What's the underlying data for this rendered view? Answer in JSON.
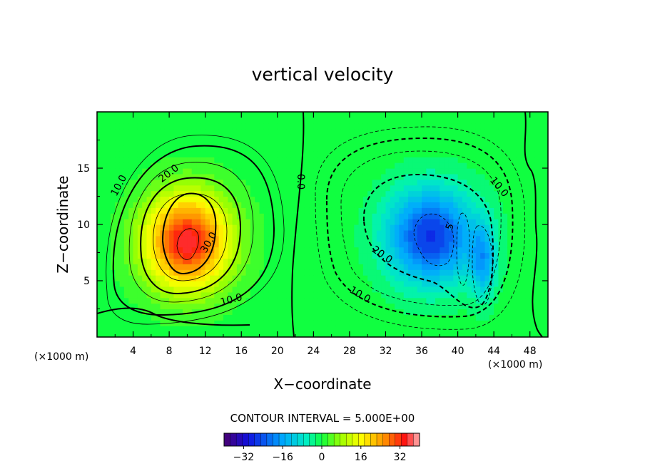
{
  "chart_data": {
    "type": "heatmap",
    "title": "vertical velocity",
    "xlabel": "X−coordinate",
    "ylabel": "Z−coordinate",
    "x_unit_left": "(×1000 m)",
    "x_unit_right": "(×1000 m)",
    "xlim": [
      0,
      50
    ],
    "ylim": [
      0,
      20
    ],
    "x_ticks": [
      4,
      8,
      12,
      16,
      20,
      24,
      28,
      32,
      36,
      40,
      44,
      48
    ],
    "x_tick_labels": [
      "4",
      "8",
      "12",
      "16",
      "20",
      "24",
      "28",
      "32",
      "36",
      "40",
      "44",
      "48"
    ],
    "y_ticks": [
      5,
      10,
      15
    ],
    "y_tick_labels": [
      "5",
      "10",
      "15"
    ],
    "contour_interval_text": "CONTOUR INTERVAL = 5.000E+00",
    "contour_labels": [
      "10.0",
      "20.0",
      "30.0",
      "10.0",
      "0.0",
      "10.0",
      "20.0",
      "10.0",
      "5"
    ],
    "colorbar": {
      "range": [
        -40,
        40
      ],
      "ticks": [
        -32,
        -16,
        0,
        16,
        32
      ],
      "tick_labels": [
        "−32",
        "−16",
        "0",
        "16",
        "32"
      ]
    },
    "updraft": {
      "center_x": 10,
      "center_z": 8.5,
      "peak": 35
    },
    "downdraft": {
      "center_x": 37,
      "center_z": 9,
      "peak": -27
    },
    "colormap": [
      "#4a0070",
      "#0a28ff",
      "#00c8ff",
      "#00ff90",
      "#44ff00",
      "#ffff00",
      "#ff8c00",
      "#ff0a0a",
      "#ffb4b4"
    ]
  }
}
